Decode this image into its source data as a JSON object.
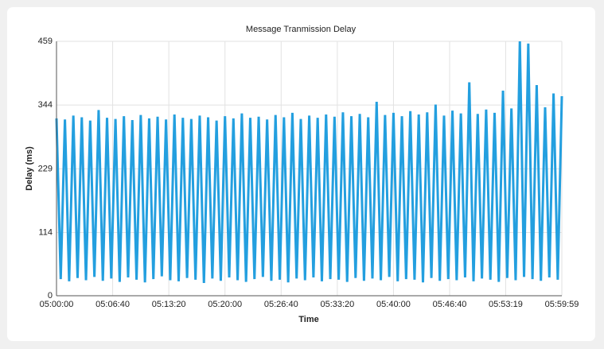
{
  "chart_data": {
    "type": "line",
    "title": "Message Tranmission Delay",
    "x_label": "Time",
    "y_label": "Delay (ms)",
    "x": [
      0,
      30,
      60,
      90,
      120,
      150,
      180,
      210,
      240,
      270,
      300,
      330,
      360,
      390,
      420,
      450,
      480,
      510,
      540,
      570,
      600,
      630,
      660,
      690,
      720,
      750,
      780,
      810,
      840,
      870,
      900,
      930,
      960,
      990,
      1020,
      1050,
      1080,
      1110,
      1140,
      1170,
      1200,
      1230,
      1260,
      1290,
      1320,
      1350,
      1380,
      1410,
      1440,
      1470,
      1500,
      1530,
      1560,
      1590,
      1620,
      1650,
      1680,
      1710,
      1740,
      1770,
      1800,
      1830,
      1860,
      1890,
      1920,
      1950,
      1980,
      2010,
      2040,
      2070,
      2100,
      2130,
      2160,
      2190,
      2220,
      2250,
      2280,
      2310,
      2340,
      2370,
      2400,
      2430,
      2460,
      2490,
      2520,
      2550,
      2580,
      2610,
      2640,
      2670,
      2700,
      2730,
      2760,
      2790,
      2820,
      2850,
      2880,
      2910,
      2940,
      2970,
      3000,
      3030,
      3060,
      3090,
      3120,
      3150,
      3180,
      3210,
      3240,
      3270,
      3300,
      3330,
      3360,
      3390,
      3420,
      3450,
      3480,
      3510,
      3540,
      3570,
      3599
    ],
    "series": [
      {
        "name": "Delay",
        "color": "#239fdf",
        "values": [
          320,
          30,
          318,
          26,
          325,
          32,
          322,
          28,
          316,
          34,
          335,
          27,
          321,
          31,
          319,
          25,
          324,
          33,
          317,
          29,
          326,
          24,
          320,
          30,
          323,
          35,
          318,
          28,
          327,
          26,
          321,
          32,
          319,
          29,
          325,
          23,
          322,
          31,
          316,
          27,
          324,
          33,
          320,
          28,
          329,
          25,
          321,
          30,
          323,
          34,
          318,
          27,
          326,
          29,
          322,
          24,
          330,
          31,
          319,
          28,
          325,
          33,
          321,
          26,
          327,
          30,
          323,
          29,
          331,
          25,
          324,
          32,
          328,
          27,
          322,
          31,
          350,
          28,
          326,
          34,
          330,
          26,
          324,
          30,
          333,
          29,
          327,
          24,
          331,
          32,
          345,
          27,
          325,
          30,
          334,
          28,
          329,
          33,
          385,
          26,
          328,
          31,
          336,
          29,
          330,
          25,
          370,
          32,
          338,
          28,
          459,
          34,
          455,
          30,
          380,
          27,
          340,
          33,
          365,
          29,
          360
        ]
      }
    ],
    "xlim": [
      0,
      3599
    ],
    "xticks": [
      {
        "value": 0,
        "label": "05:00:00"
      },
      {
        "value": 400,
        "label": "05:06:40"
      },
      {
        "value": 800,
        "label": "05:13:20"
      },
      {
        "value": 1200,
        "label": "05:20:00"
      },
      {
        "value": 1600,
        "label": "05:26:40"
      },
      {
        "value": 2000,
        "label": "05:33:20"
      },
      {
        "value": 2400,
        "label": "05:40:00"
      },
      {
        "value": 2800,
        "label": "05:46:40"
      },
      {
        "value": 3199,
        "label": "05:53:19"
      },
      {
        "value": 3599,
        "label": "05:59:59"
      }
    ],
    "ylim": [
      0,
      459
    ],
    "yticks": [
      0,
      114,
      229,
      344,
      459
    ],
    "grid": true
  }
}
